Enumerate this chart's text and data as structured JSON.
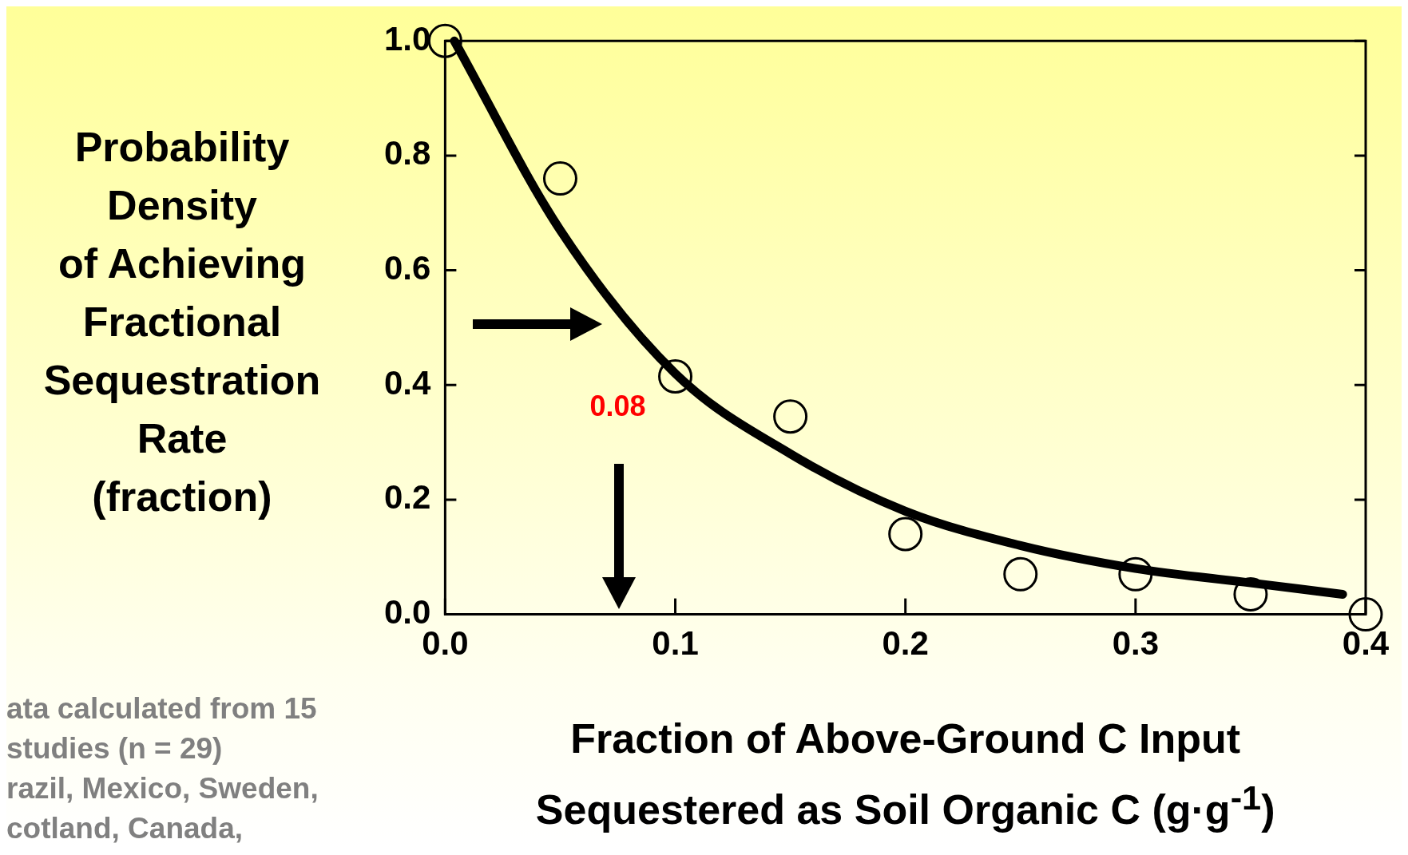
{
  "chart_data": {
    "type": "scatter",
    "xlabel": "Fraction of Above-Ground C Input\nSequestered as Soil Organic C (g·g$^{-1}$)",
    "ylabel": "Probability\nDensity\nof Achieving\nFractional\nSequestration\nRate\n(fraction)",
    "series": [
      {
        "color": "#000000",
        "x": [
          0,
          0.05,
          0.1,
          0.15,
          0.2,
          0.25,
          0.3,
          0.35,
          0.4
        ],
        "values": [
          1.0,
          0.76,
          0.415,
          0.345,
          0.14,
          0.07,
          0.07,
          0.035,
          0
        ],
        "marker": "circle"
      },
      {
        "type": "line",
        "color": "#000000",
        "x": [
          0.004,
          0.05,
          0.1,
          0.15,
          0.2,
          0.25,
          0.3,
          0.35,
          0.39
        ],
        "values": [
          1.0,
          0.67,
          0.42,
          0.28,
          0.18,
          0.12,
          0.08,
          0.055,
          0.035
        ],
        "marker": "none",
        "line_style": "solid"
      }
    ],
    "xlim": [
      0,
      0.4
    ],
    "xticks": [
      {
        "value": 0,
        "label": "0.0"
      },
      0.1,
      0.2,
      0.3,
      0.4
    ],
    "ylim": [
      0,
      1
    ],
    "yticks": [
      {
        "value": 0,
        "label": "0.0"
      },
      0.2,
      0.4,
      0.6,
      0.8,
      {
        "value": 1,
        "label": "1.0"
      }
    ],
    "grid": false,
    "legend": false,
    "annotations": [
      "0.08",
      "ata calculated from 15\nstudies (n = 29)\nrazil, Mexico, Sweden,\ncotland, Canada,"
    ]
  }
}
